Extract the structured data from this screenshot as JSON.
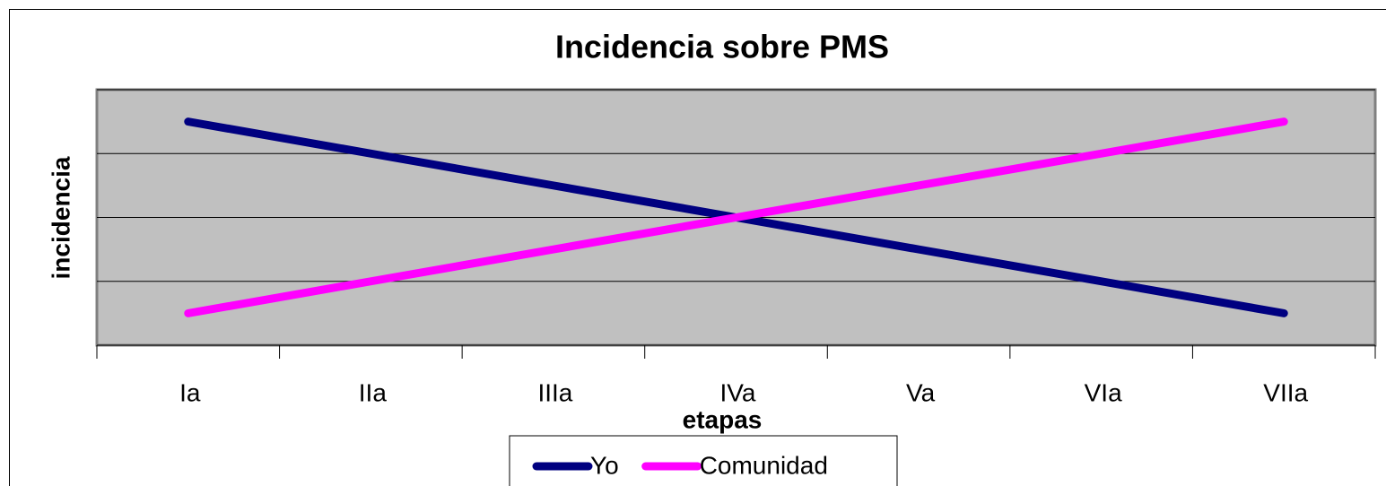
{
  "chart_data": {
    "type": "line",
    "title": "Incidencia sobre PMS",
    "x_label": "etapas",
    "y_label": "incidencia",
    "categories": [
      "Ia",
      "IIa",
      "IIIa",
      "IVa",
      "Va",
      "VIa",
      "VIIa"
    ],
    "series": [
      {
        "name": "Yo",
        "color": "#000080",
        "values": [
          3.5,
          3,
          2.5,
          2,
          1.5,
          1,
          0.5
        ]
      },
      {
        "name": "Comunidad",
        "color": "#ff00ff",
        "values": [
          0.5,
          1,
          1.5,
          2,
          2.5,
          3,
          3.5
        ]
      }
    ],
    "ylim": [
      0,
      4
    ],
    "yticks": [
      0,
      1,
      2,
      3,
      4
    ],
    "grid": true,
    "legend": "bottom"
  }
}
